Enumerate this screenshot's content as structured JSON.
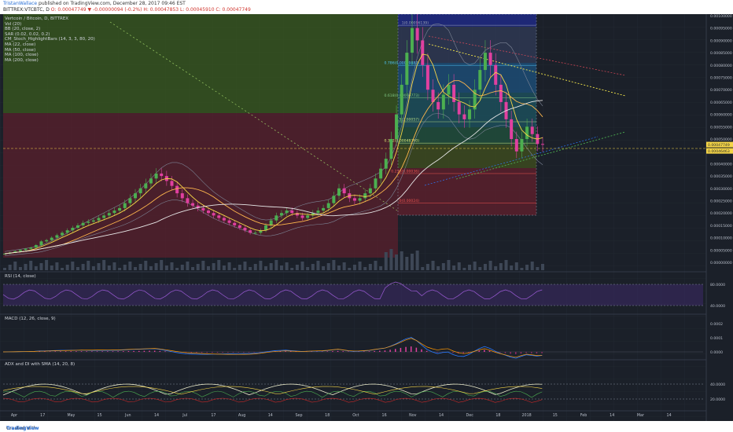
{
  "header": {
    "author": "TristanWallace",
    "published": "published on TradingView.com, December 28, 2017 09:46 EST",
    "symbol_line_prefix": "BITTREX:VTCBTC, D",
    "ohlc": "O: 0.00047749 ▼ -0.00000094 (-0.2%) H: 0.00047853 L: 0.00045910 C: 0.00047749"
  },
  "legend": {
    "title": "Vertcoin / Bitcoin, D, BITTREX",
    "indicators": [
      "Vol (20)",
      "BB (20, close, 2)",
      "SAR (0.02, 0.02, 0.2)",
      "CM_Stoch_HighlightBars (14, 3, 3, 80, 20)",
      "MA (22, close)",
      "MA (50, close)",
      "MA (100, close)",
      "MA (200, close)"
    ]
  },
  "panes": {
    "rsi": "RSI (14, close)",
    "macd": "MACD (12, 26, close, 9)",
    "adx": "ADX and DI with SMA (14, 20, 8)"
  },
  "footer": {
    "created_with": "Created with",
    "brand": "TradingView"
  },
  "colors": {
    "background": "#1b2029",
    "up_candle": "#4caf50",
    "down_candle": "#e040a0",
    "fib_green": "#9ccc65",
    "fib_blue": "#2979ff",
    "fib_red": "#ef5350",
    "ma_white": "#e8e8e8",
    "ma_yellow": "#f5d547",
    "price_tag": "#f5d547"
  },
  "chart_data": {
    "type": "candlestick",
    "title": "Vertcoin / Bitcoin, D, BITTREX",
    "x_axis_labels": [
      "Apr",
      "17",
      "May",
      "15",
      "Jun",
      "14",
      "Jul",
      "17",
      "Aug",
      "14",
      "Sep",
      "18",
      "Oct",
      "16",
      "Nov",
      "14",
      "Dec",
      "18",
      "2018",
      "15",
      "Feb",
      "14",
      "Mar",
      "14"
    ],
    "y_axis_labels": [
      "0.00100000",
      "0.00095000",
      "0.00090000",
      "0.00085000",
      "0.00080000",
      "0.00075000",
      "0.00070000",
      "0.00065000",
      "0.00060000",
      "0.00055000",
      "0.00050000",
      "0.00045000",
      "0.00040000",
      "0.00035000",
      "0.00030000",
      "0.00025000",
      "0.00020000",
      "0.00015000",
      "0.00010000",
      "0.00005000",
      "0.00000000"
    ],
    "ylim": [
      0,
      0.001
    ],
    "price_tags": [
      "0.00047749",
      "0.00046463"
    ],
    "fib_levels": [
      {
        "ratio": "1",
        "price": "0.00096139"
      },
      {
        "ratio": "0.786",
        "price": "0.00079887"
      },
      {
        "ratio": "0.618",
        "price": "0.00066773"
      },
      {
        "ratio": "0.5",
        "price": "0.00057"
      },
      {
        "ratio": "0.382",
        "price": "0.00048360"
      },
      {
        "ratio": "0.236",
        "price": "0.00036"
      },
      {
        "ratio": "0",
        "price": "0.00024"
      }
    ],
    "rsi_axis_labels": [
      "80.0000",
      "40.0000"
    ],
    "macd_axis_labels": [
      "0.0002",
      "0.0001",
      "0.0000"
    ],
    "adx_axis_labels": [
      "40.0000",
      "20.0000"
    ],
    "close_series": [
      3.5e-05,
      4e-05,
      4.5e-05,
      5e-05,
      5.5e-05,
      6e-05,
      7e-05,
      8.5e-05,
      9e-05,
      0.0001,
      0.00011,
      0.00012,
      0.00013,
      0.00014,
      0.00015,
      0.00016,
      0.000165,
      0.00017,
      0.00018,
      0.00019,
      0.0002,
      0.00021,
      0.00022,
      0.00024,
      0.00026,
      0.00028,
      0.0003,
      0.00032,
      0.00034,
      0.00036,
      0.00035,
      0.00033,
      0.00031,
      0.00028,
      0.00026,
      0.00024,
      0.00023,
      0.00022,
      0.00021,
      0.0002,
      0.00019,
      0.00018,
      0.00017,
      0.00016,
      0.00015,
      0.00014,
      0.00013,
      0.00012,
      0.00012,
      0.00013,
      0.00015,
      0.00017,
      0.00019,
      0.0002,
      0.00021,
      0.0002,
      0.00019,
      0.00018,
      0.00019,
      0.0002,
      0.00021,
      0.00022,
      0.00024,
      0.00027,
      0.0003,
      0.00028,
      0.00026,
      0.00025,
      0.00026,
      0.00028,
      0.0003,
      0.00034,
      0.00038,
      0.00042,
      0.0005,
      0.0006,
      0.00072,
      0.00085,
      0.00095,
      0.0009,
      0.0008,
      0.0007,
      0.00065,
      0.00062,
      0.00068,
      0.00072,
      0.00065,
      0.0006,
      0.00058,
      0.00062,
      0.0007,
      0.00078,
      0.00085,
      0.0008,
      0.00072,
      0.00065,
      0.00058,
      0.0005,
      0.00045,
      0.0005,
      0.00055,
      0.00052,
      0.00048,
      0.00047749
    ]
  }
}
